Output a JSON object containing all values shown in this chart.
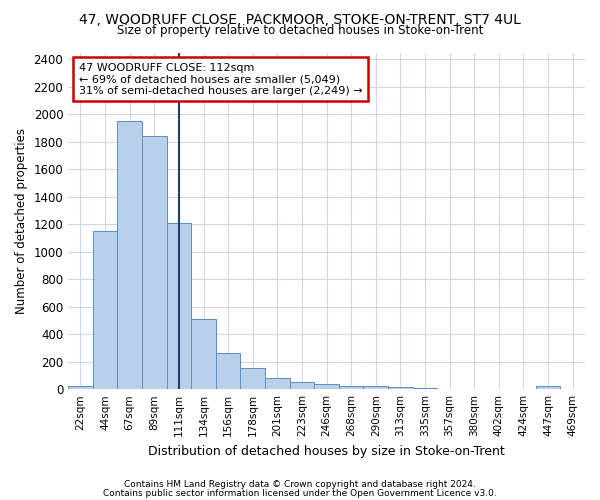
{
  "title": "47, WOODRUFF CLOSE, PACKMOOR, STOKE-ON-TRENT, ST7 4UL",
  "subtitle": "Size of property relative to detached houses in Stoke-on-Trent",
  "xlabel": "Distribution of detached houses by size in Stoke-on-Trent",
  "ylabel": "Number of detached properties",
  "categories": [
    "22sqm",
    "44sqm",
    "67sqm",
    "89sqm",
    "111sqm",
    "134sqm",
    "156sqm",
    "178sqm",
    "201sqm",
    "223sqm",
    "246sqm",
    "268sqm",
    "290sqm",
    "313sqm",
    "335sqm",
    "357sqm",
    "380sqm",
    "402sqm",
    "424sqm",
    "447sqm",
    "469sqm"
  ],
  "values": [
    25,
    1150,
    1950,
    1840,
    1210,
    510,
    265,
    155,
    80,
    50,
    40,
    20,
    20,
    15,
    10,
    0,
    0,
    0,
    0,
    20,
    0
  ],
  "bar_color": "#b8d0ea",
  "bar_edge_color": "#5b8ec4",
  "vline_x_idx": 4,
  "vline_color": "#223d6e",
  "annotation_line1": "47 WOODRUFF CLOSE: 112sqm",
  "annotation_line2": "← 69% of detached houses are smaller (5,049)",
  "annotation_line3": "31% of semi-detached houses are larger (2,249) →",
  "annotation_box_facecolor": "#ffffff",
  "annotation_box_edgecolor": "#cc0000",
  "ylim": [
    0,
    2450
  ],
  "yticks": [
    0,
    200,
    400,
    600,
    800,
    1000,
    1200,
    1400,
    1600,
    1800,
    2000,
    2200,
    2400
  ],
  "footer1": "Contains HM Land Registry data © Crown copyright and database right 2024.",
  "footer2": "Contains public sector information licensed under the Open Government Licence v3.0.",
  "bg_color": "#ffffff",
  "plot_bg_color": "#ffffff",
  "grid_color": "#d0d8e8",
  "spine_color": "#b0b8c8"
}
